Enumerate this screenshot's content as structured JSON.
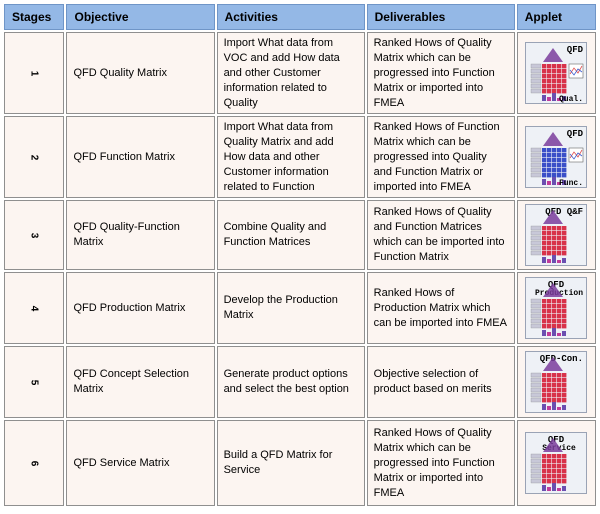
{
  "headers": {
    "stages": "Stages",
    "objective": "Objective",
    "activities": "Activities",
    "deliverables": "Deliverables",
    "applet": "Applet"
  },
  "rows": [
    {
      "stage": "1",
      "objective": "QFD Quality Matrix",
      "activities": "Import What data from VOC and add How data and other Customer information related to Quality",
      "deliverables": "Ranked Hows of Quality Matrix which can be progressed into Function Matrix or imported into FMEA",
      "applet_top": "QFD",
      "applet_bottom": "Qual."
    },
    {
      "stage": "2",
      "objective": "QFD Function Matrix",
      "activities": "Import What data from Quality Matrix and add How data and other Customer information related to Function",
      "deliverables": "Ranked Hows of Function Matrix which can be progressed into Quality and Function Matrix or imported into FMEA",
      "applet_top": "QFD",
      "applet_bottom": "Func."
    },
    {
      "stage": "3",
      "objective": "QFD Quality-Function Matrix",
      "activities": "Combine Quality and Function Matrices",
      "deliverables": "Ranked Hows of Quality and Function Matrices which can be imported into Function Matrix",
      "applet_top": "QFD Q&F",
      "applet_bottom": ""
    },
    {
      "stage": "4",
      "objective": "QFD Production Matrix",
      "activities": "Develop the Production Matrix",
      "deliverables": "Ranked Hows of Production Matrix which can be imported into FMEA",
      "applet_top": "QFD",
      "applet_top2": "Production",
      "applet_bottom": ""
    },
    {
      "stage": "5",
      "objective": "QFD Concept Selection Matrix",
      "activities": "Generate product options and select the best option",
      "deliverables": "Objective selection of product based on merits",
      "applet_top": "QFD-Con.",
      "applet_bottom": ""
    },
    {
      "stage": "6",
      "objective": "QFD Service Matrix",
      "activities": "Build a QFD Matrix for Service",
      "deliverables": "Ranked Hows of Quality Matrix which can be progressed into Function Matrix or imported into FMEA",
      "applet_top": "QFD",
      "applet_top2": "Service",
      "applet_bottom": ""
    }
  ],
  "colors": {
    "header_bg": "#94b8e6",
    "cell_bg": "#fcf5f1",
    "matrix_red": "#d8324a",
    "matrix_blue": "#3a4fc8",
    "roof_purple": "#7a3d9c",
    "applet_bg": "#eef1f6"
  }
}
